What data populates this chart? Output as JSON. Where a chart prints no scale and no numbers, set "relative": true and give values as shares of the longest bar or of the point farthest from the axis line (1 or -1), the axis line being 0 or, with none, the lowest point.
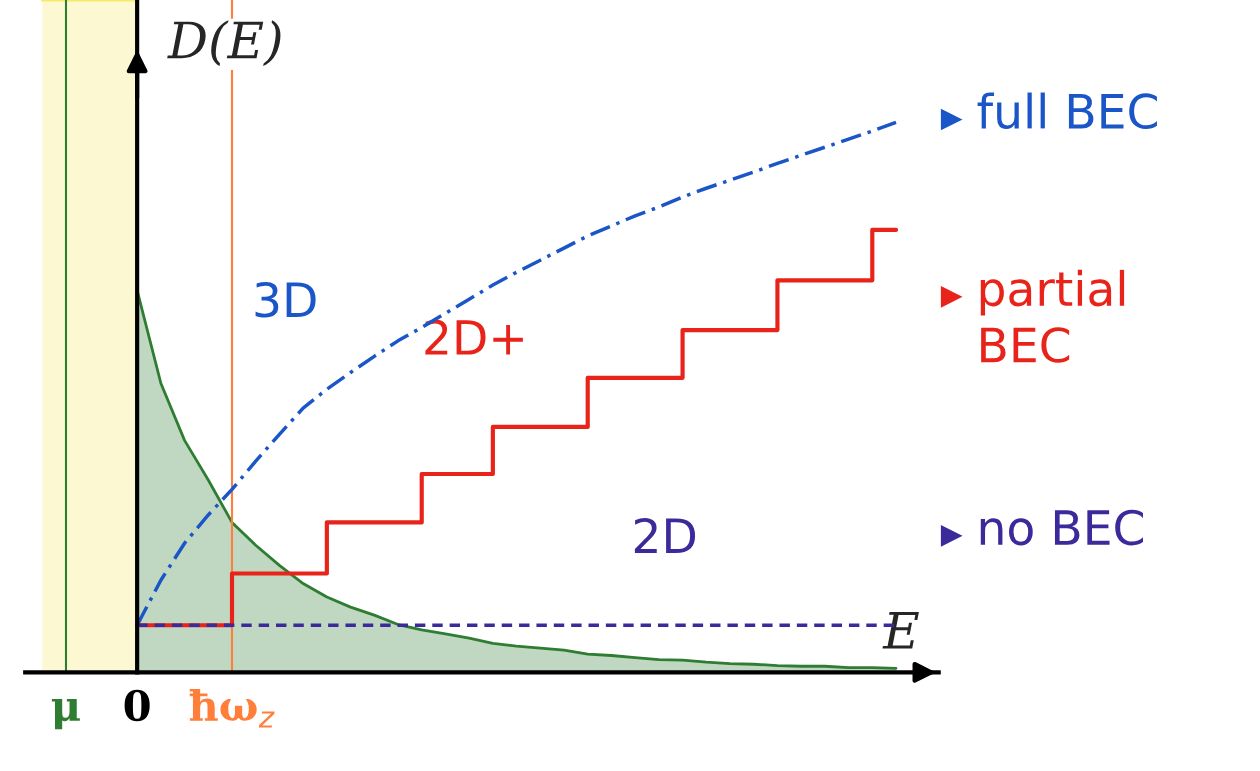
{
  "chart_data": {
    "type": "line",
    "relative": true,
    "ylabel": "D(E)",
    "xlabel": "E",
    "categories": [
      null,
      "μ",
      null,
      null,
      "0",
      null,
      null,
      null,
      "ħω$_{z}$",
      null,
      null,
      null,
      null,
      null,
      null,
      null,
      null,
      null,
      null,
      null,
      null,
      null,
      null,
      null,
      null,
      null,
      null,
      null,
      null,
      null,
      null,
      null,
      null,
      null,
      null,
      null,
      null
    ],
    "ref_lines": [
      {
        "axis": "x",
        "value": "μ",
        "color": "#2e7d32"
      },
      {
        "axis": "x",
        "value": "ħω$_{z}$",
        "color": "#ff7f3a"
      }
    ],
    "series": [
      {
        "type": "area",
        "color": "#f5ea6a",
        "line_style": "solid",
        "values": [
          1,
          1,
          1,
          1,
          1,
          null,
          null,
          null,
          null,
          null,
          null,
          null,
          null,
          null,
          null,
          null,
          null,
          null,
          null,
          null,
          null,
          null,
          null,
          null,
          null,
          null,
          null,
          null,
          null,
          null,
          null,
          null,
          null,
          null,
          null,
          null,
          null
        ]
      },
      {
        "name": "3D",
        "color": "#1a56c8",
        "line_style": "dashdot",
        "values": [
          null,
          null,
          null,
          null,
          0.07,
          0.137,
          0.192,
          0.234,
          0.272,
          0.314,
          0.354,
          0.393,
          0.421,
          0.446,
          0.47,
          0.493,
          0.513,
          0.534,
          0.555,
          0.576,
          0.595,
          0.613,
          0.631,
          0.649,
          0.664,
          0.679,
          0.692,
          0.707,
          0.72,
          0.732,
          0.744,
          0.757,
          0.769,
          0.781,
          0.793,
          0.805,
          0.818
        ]
      },
      {
        "name": "2D+",
        "type": "step",
        "color": "#e8231a",
        "line_style": "solid",
        "values": [
          null,
          null,
          null,
          null,
          0.07,
          0.07,
          0.07,
          0.07,
          0.147,
          0.147,
          0.147,
          0.147,
          0.223,
          0.223,
          0.223,
          0.223,
          0.295,
          0.295,
          0.295,
          0.365,
          0.365,
          0.365,
          0.365,
          0.438,
          0.438,
          0.438,
          0.438,
          0.509,
          0.509,
          0.509,
          0.509,
          0.583,
          0.583,
          0.583,
          0.583,
          0.658,
          0.658
        ]
      },
      {
        "name": "2D",
        "color": "#3a2a9a",
        "line_style": "dashed",
        "values": [
          null,
          null,
          null,
          null,
          0.07,
          0.07,
          0.07,
          0.07,
          0.07,
          0.07,
          0.07,
          0.07,
          0.07,
          0.07,
          0.07,
          0.07,
          0.07,
          0.07,
          0.07,
          0.07,
          0.07,
          0.07,
          0.07,
          0.07,
          0.07,
          0.07,
          0.07,
          0.07,
          0.07,
          0.07,
          0.07,
          0.07,
          0.07,
          0.07,
          0.07,
          0.07,
          0.07
        ]
      },
      {
        "type": "area",
        "color": "#2e7d32",
        "line_style": "solid",
        "values": [
          null,
          null,
          null,
          null,
          0.568,
          0.43,
          0.345,
          0.286,
          0.223,
          0.189,
          0.159,
          0.132,
          0.112,
          0.097,
          0.085,
          0.071,
          0.063,
          0.057,
          0.051,
          0.043,
          0.039,
          0.036,
          0.033,
          0.027,
          0.025,
          0.022,
          0.019,
          0.018,
          0.015,
          0.013,
          0.012,
          0.01,
          0.009,
          0.009,
          0.007,
          0.007,
          0.006
        ]
      }
    ],
    "annotations": [
      "full BEC",
      "partial\nBEC",
      "no BEC"
    ],
    "legend": false,
    "grid": false,
    "marker": "none"
  }
}
